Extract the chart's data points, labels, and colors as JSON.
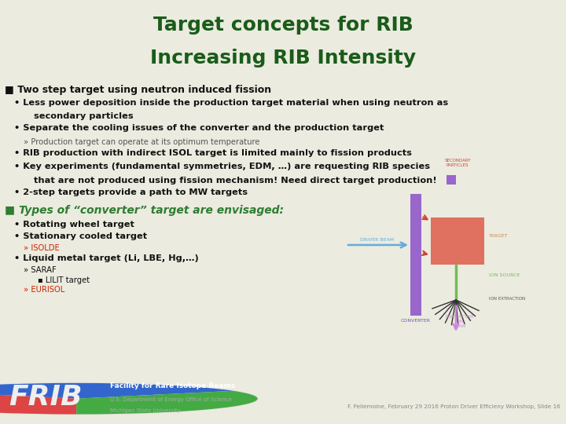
{
  "title_line1": "Target concepts for RIB",
  "title_line2": "Increasing RIB Intensity",
  "title_color": "#1a5c1a",
  "title_bg": "#d5d5c5",
  "body_bg": "#ebebdf",
  "title_fontsize": 18,
  "section1_header": "■ Two step target using neutron induced fission",
  "section2_header": "■ Types of “converter” target are envisaged:",
  "section1_color": "#111111",
  "section2_color": "#2e7d32",
  "footer_text": "F. Pellemoine, February 29 2016 Proton Driver Efficieny Workshop, Slide 16",
  "footer_color": "#555555",
  "frib_text_color": "#1a5c1a",
  "red_color": "#cc2200",
  "body1_lines": [
    {
      "indent": 1,
      "text": "Less power deposition inside the production target material when using neutron as",
      "bold": true,
      "color": "#111111"
    },
    {
      "indent": 2,
      "text": "secondary particles",
      "bold": true,
      "color": "#111111"
    },
    {
      "indent": 1,
      "text": "Separate the cooling issues of the converter and the production target",
      "bold": true,
      "color": "#111111"
    },
    {
      "indent": 3,
      "text": "» Production target can operate at its optimum temperature",
      "bold": false,
      "color": "#555555"
    },
    {
      "indent": 1,
      "text": "RIB production with indirect ISOL target is limited mainly to fission products",
      "bold": true,
      "color": "#111111"
    },
    {
      "indent": 1,
      "text": "Key experiments (fundamental symmetries, EDM, …) are requesting RIB species",
      "bold": true,
      "color": "#111111"
    },
    {
      "indent": 2,
      "text": "that are not produced using fission mechanism! Need direct target production!",
      "bold": true,
      "color": "#111111"
    },
    {
      "indent": 1,
      "text": "2-step targets provide a path to MW targets",
      "bold": true,
      "color": "#111111"
    }
  ],
  "body2_lines": [
    {
      "indent": 1,
      "text": "Rotating wheel target",
      "bold": true,
      "color": "#111111"
    },
    {
      "indent": 1,
      "text": "Stationary cooled target",
      "bold": true,
      "color": "#111111"
    },
    {
      "indent": 3,
      "text": "» ISOLDE",
      "bold": false,
      "color": "#cc2200"
    },
    {
      "indent": 1,
      "text": "Liquid metal target (Li, LBE, Hg,…)",
      "bold": true,
      "color": "#111111"
    },
    {
      "indent": 3,
      "text": "» SARAF",
      "bold": false,
      "color": "#111111"
    },
    {
      "indent": 4,
      "text": "▪ LILIT target",
      "bold": false,
      "color": "#111111"
    },
    {
      "indent": 3,
      "text": "» EURISOL",
      "bold": false,
      "color": "#cc2200"
    }
  ],
  "diag": {
    "converter_color": "#9966cc",
    "target_color": "#e07060",
    "arrow_blue": "#66aadd",
    "arrow_red": "#cc4433",
    "ion_source_color": "#77bb55",
    "ion_beam_color": "#cc88dd",
    "label_converter": "#7755aa",
    "label_driver": "#66aadd",
    "label_secondary": "#cc4433",
    "label_target": "#cc8855",
    "label_ion_source": "#77bb55",
    "label_ion_extract": "#555555",
    "label_radioactive": "#cc88dd"
  }
}
